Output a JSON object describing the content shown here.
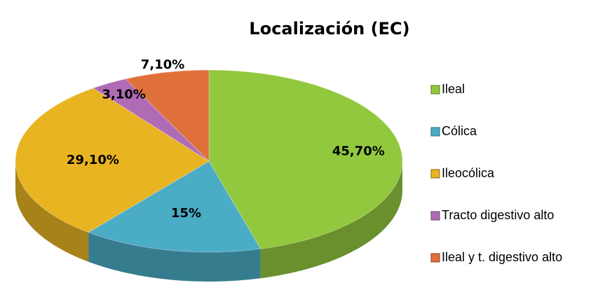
{
  "chart_data": {
    "type": "pie",
    "title": "Localización (EC)",
    "categories": [
      "Ileal",
      "Cólica",
      "Ileocólica",
      "Tracto digestivo alto",
      "Ileal y t. digestivo alto"
    ],
    "values": [
      45.7,
      15,
      29.1,
      3.1,
      7.1
    ],
    "value_labels": [
      "45,70%",
      "15%",
      "29,10%",
      "3,10%",
      "7,10%"
    ],
    "colors": [
      "#92c83e",
      "#4bacc6",
      "#e8b422",
      "#b06bb5",
      "#e0703a"
    ],
    "legend": "right"
  }
}
